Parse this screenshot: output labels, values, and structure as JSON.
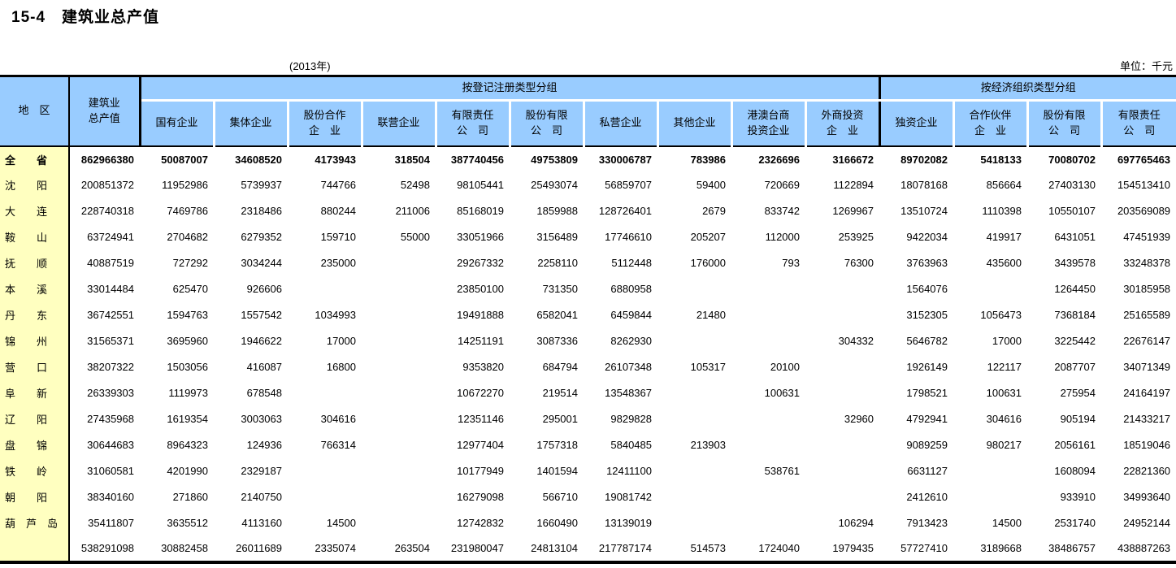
{
  "page": {
    "title": "15-4　建筑业总产值",
    "year_note": "(2013年)",
    "unit_note": "单位：千元"
  },
  "colors": {
    "header_bg": "#99CCFF",
    "region_bg": "#FFFFC0",
    "border": "#000000"
  },
  "table": {
    "region_header": "地　区",
    "total_header": "建筑业\n总产值",
    "group_headers": {
      "registration": "按登记注册类型分组",
      "economic": "按经济组织类型分组"
    },
    "sub_headers": [
      "国有企业",
      "集体企业",
      "股份合作\n企　业",
      "联营企业",
      "有限责任\n公　司",
      "股份有限\n公　司",
      "私营企业",
      "其他企业",
      "港澳台商\n投资企业",
      "外商投资\n企　业",
      "独资企业",
      "合作伙伴\n企　业",
      "股份有限\n公　司",
      "有限责任\n公　司"
    ],
    "rows": [
      {
        "region": "全　　省",
        "bold": true,
        "values": [
          "862966380",
          "50087007",
          "34608520",
          "4173943",
          "318504",
          "387740456",
          "49753809",
          "330006787",
          "783986",
          "2326696",
          "3166672",
          "89702082",
          "5418133",
          "70080702",
          "697765463"
        ]
      },
      {
        "region": "沈　　阳",
        "bold": false,
        "values": [
          "200851372",
          "11952986",
          "5739937",
          "744766",
          "52498",
          "98105441",
          "25493074",
          "56859707",
          "59400",
          "720669",
          "1122894",
          "18078168",
          "856664",
          "27403130",
          "154513410"
        ]
      },
      {
        "region": "大　　连",
        "bold": false,
        "values": [
          "228740318",
          "7469786",
          "2318486",
          "880244",
          "211006",
          "85168019",
          "1859988",
          "128726401",
          "2679",
          "833742",
          "1269967",
          "13510724",
          "1110398",
          "10550107",
          "203569089"
        ]
      },
      {
        "region": "鞍　　山",
        "bold": false,
        "values": [
          "63724941",
          "2704682",
          "6279352",
          "159710",
          "55000",
          "33051966",
          "3156489",
          "17746610",
          "205207",
          "112000",
          "253925",
          "9422034",
          "419917",
          "6431051",
          "47451939"
        ]
      },
      {
        "region": "抚　　顺",
        "bold": false,
        "values": [
          "40887519",
          "727292",
          "3034244",
          "235000",
          "",
          "29267332",
          "2258110",
          "5112448",
          "176000",
          "793",
          "76300",
          "3763963",
          "435600",
          "3439578",
          "33248378"
        ]
      },
      {
        "region": "本　　溪",
        "bold": false,
        "values": [
          "33014484",
          "625470",
          "926606",
          "",
          "",
          "23850100",
          "731350",
          "6880958",
          "",
          "",
          "",
          "1564076",
          "",
          "1264450",
          "30185958"
        ]
      },
      {
        "region": "丹　　东",
        "bold": false,
        "values": [
          "36742551",
          "1594763",
          "1557542",
          "1034993",
          "",
          "19491888",
          "6582041",
          "6459844",
          "21480",
          "",
          "",
          "3152305",
          "1056473",
          "7368184",
          "25165589"
        ]
      },
      {
        "region": "锦　　州",
        "bold": false,
        "values": [
          "31565371",
          "3695960",
          "1946622",
          "17000",
          "",
          "14251191",
          "3087336",
          "8262930",
          "",
          "",
          "304332",
          "5646782",
          "17000",
          "3225442",
          "22676147"
        ]
      },
      {
        "region": "营　　口",
        "bold": false,
        "values": [
          "38207322",
          "1503056",
          "416087",
          "16800",
          "",
          "9353820",
          "684794",
          "26107348",
          "105317",
          "20100",
          "",
          "1926149",
          "122117",
          "2087707",
          "34071349"
        ]
      },
      {
        "region": "阜　　新",
        "bold": false,
        "values": [
          "26339303",
          "1119973",
          "678548",
          "",
          "",
          "10672270",
          "219514",
          "13548367",
          "",
          "100631",
          "",
          "1798521",
          "100631",
          "275954",
          "24164197"
        ]
      },
      {
        "region": "辽　　阳",
        "bold": false,
        "values": [
          "27435968",
          "1619354",
          "3003063",
          "304616",
          "",
          "12351146",
          "295001",
          "9829828",
          "",
          "",
          "32960",
          "4792941",
          "304616",
          "905194",
          "21433217"
        ]
      },
      {
        "region": "盘　　锦",
        "bold": false,
        "values": [
          "30644683",
          "8964323",
          "124936",
          "766314",
          "",
          "12977404",
          "1757318",
          "5840485",
          "213903",
          "",
          "",
          "9089259",
          "980217",
          "2056161",
          "18519046"
        ]
      },
      {
        "region": "铁　　岭",
        "bold": false,
        "values": [
          "31060581",
          "4201990",
          "2329187",
          "",
          "",
          "10177949",
          "1401594",
          "12411100",
          "",
          "538761",
          "",
          "6631127",
          "",
          "1608094",
          "22821360"
        ]
      },
      {
        "region": "朝　　阳",
        "bold": false,
        "values": [
          "38340160",
          "271860",
          "2140750",
          "",
          "",
          "16279098",
          "566710",
          "19081742",
          "",
          "",
          "",
          "2412610",
          "",
          "933910",
          "34993640"
        ]
      },
      {
        "region": "葫　芦　岛",
        "bold": false,
        "values": [
          "35411807",
          "3635512",
          "4113160",
          "14500",
          "",
          "12742832",
          "1660490",
          "13139019",
          "",
          "",
          "106294",
          "7913423",
          "14500",
          "2531740",
          "24952144"
        ]
      },
      {
        "region": "",
        "bold": false,
        "values": [
          "538291098",
          "30882458",
          "26011689",
          "2335074",
          "263504",
          "231980047",
          "24813104",
          "217787174",
          "514573",
          "1724040",
          "1979435",
          "57727410",
          "3189668",
          "38486757",
          "438887263"
        ]
      }
    ]
  }
}
